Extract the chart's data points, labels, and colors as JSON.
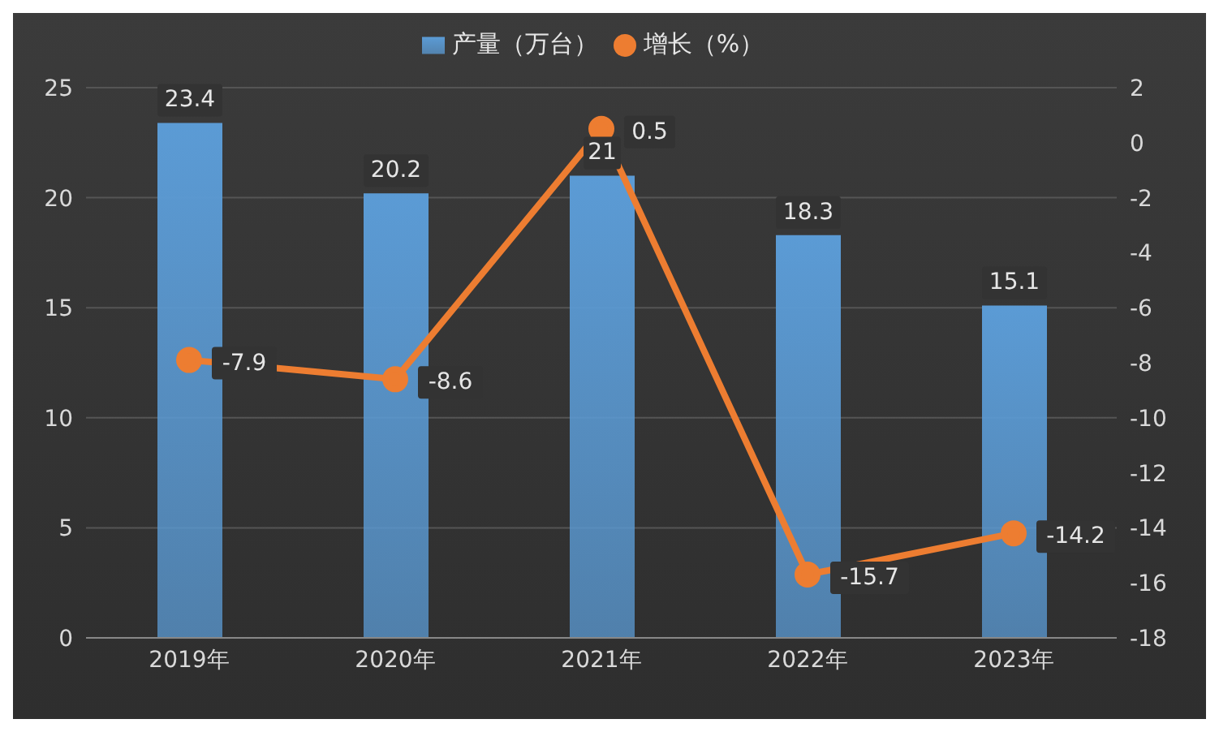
{
  "chart_data": {
    "type": "bar",
    "categories": [
      "2019年",
      "2020年",
      "2021年",
      "2022年",
      "2023年"
    ],
    "series": [
      {
        "name": "产量（万台）",
        "color": "#5b9bd5",
        "values": [
          23.4,
          20.2,
          21,
          18.3,
          15.1
        ]
      },
      {
        "name": "增长（%）",
        "type": "line",
        "axis": "y2",
        "color": "#ed7d31",
        "values": [
          -7.9,
          -8.6,
          0.5,
          -15.7,
          -14.2
        ]
      }
    ],
    "ylim": [
      0,
      25
    ],
    "yticks": [
      0,
      5,
      10,
      15,
      20,
      25
    ],
    "y2lim": [
      -18,
      2
    ],
    "y2ticks": [
      -18,
      -16,
      -14,
      -12,
      -10,
      -8,
      -6,
      -4,
      -2,
      0,
      2
    ],
    "grid": "y",
    "legend": "top",
    "marker": "circle",
    "data_labels": true
  }
}
